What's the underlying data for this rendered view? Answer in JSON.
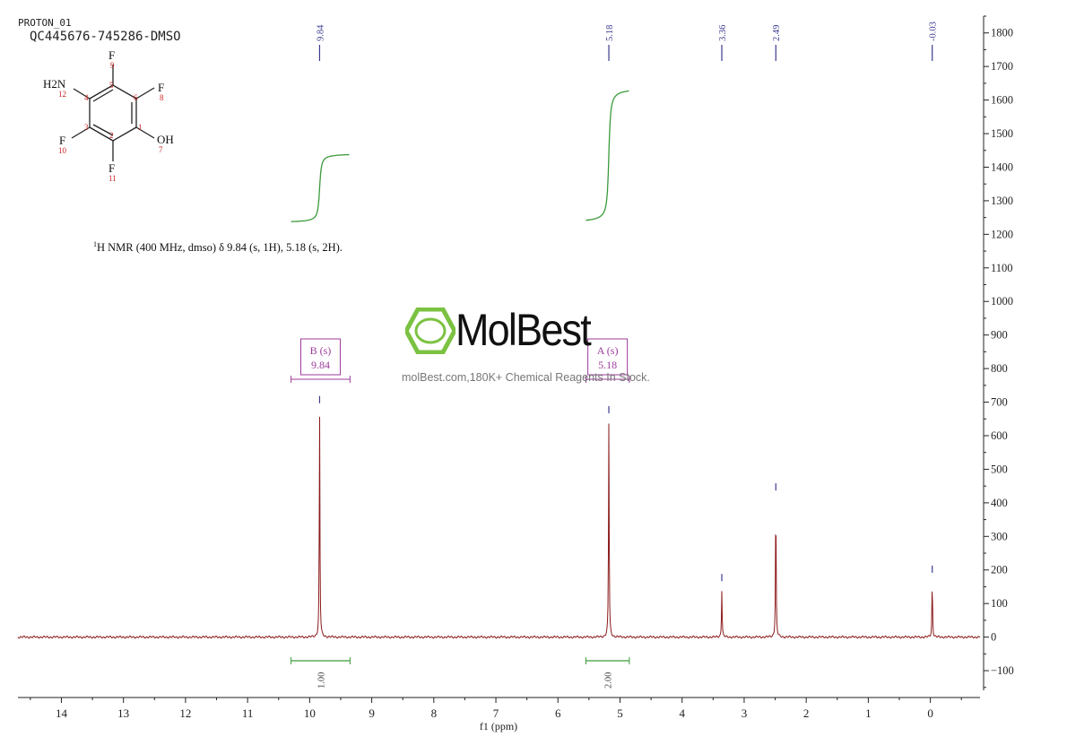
{
  "header": {
    "experiment": "PROTON_01",
    "sample": "QC445676-745286-DMSO"
  },
  "nmr_text": {
    "prefix": "1",
    "body": "H NMR (400 MHz, dmso) δ 9.84 (s, 1H), 5.18 (s, 2H)."
  },
  "watermark": {
    "brand": "MolBest",
    "tagline": "molBest.com,180K+ Chemical Reagents In Stock.",
    "logo_icon": "benzene-ring-icon",
    "logo_color": "#7cc242"
  },
  "structure": {
    "atoms": [
      {
        "id": "F9",
        "label": "F",
        "num": "9"
      },
      {
        "id": "F8",
        "label": "F",
        "num": "8"
      },
      {
        "id": "NH2",
        "label": "H2N",
        "num": "12"
      },
      {
        "id": "OH",
        "label": "OH",
        "num": "7"
      },
      {
        "id": "F10",
        "label": "F",
        "num": "10"
      },
      {
        "id": "F11",
        "label": "F",
        "num": "11"
      }
    ],
    "ring_numbers": [
      "1",
      "2",
      "3",
      "4",
      "5",
      "6"
    ]
  },
  "chart_data": {
    "type": "line",
    "xlabel": "f1 (ppm)",
    "ylabel": "",
    "xlim": [
      14.7,
      -0.8
    ],
    "ylim": [
      -180,
      1850
    ],
    "x_ticks": [
      14,
      13,
      12,
      11,
      10,
      9,
      8,
      7,
      6,
      5,
      4,
      3,
      2,
      1,
      0
    ],
    "y_ticks": [
      -100,
      0,
      100,
      200,
      300,
      400,
      500,
      600,
      700,
      800,
      900,
      1000,
      1100,
      1200,
      1300,
      1400,
      1500,
      1600,
      1700,
      1800
    ],
    "grid": false,
    "colors": {
      "spectrum": "#8b1a1a",
      "integral": "#3a9a3a",
      "peak_label": "#3b3b8f",
      "multiplet": "#9b3b9b"
    },
    "peaks": [
      {
        "ppm": 9.84,
        "label": "9.84",
        "height": 670
      },
      {
        "ppm": 5.18,
        "label": "5.18",
        "height": 640
      },
      {
        "ppm": 3.36,
        "label": "3.36",
        "height": 140
      },
      {
        "ppm": 2.49,
        "label": "2.49",
        "height": 410
      },
      {
        "ppm": -0.03,
        "label": "-0.03",
        "height": 165
      }
    ],
    "integrals": [
      {
        "from": 10.3,
        "to": 9.35,
        "value": "1.00",
        "curve_low": 1235,
        "curve_high": 1440
      },
      {
        "from": 5.55,
        "to": 4.85,
        "value": "2.00",
        "curve_low": 1235,
        "curve_high": 1635
      }
    ],
    "multiplets": [
      {
        "letter": "B",
        "mult": "(s)",
        "shift": "9.84",
        "from": 10.3,
        "to": 9.35
      },
      {
        "letter": "A",
        "mult": "(s)",
        "shift": "5.18",
        "from": 5.55,
        "to": 4.85
      }
    ]
  }
}
